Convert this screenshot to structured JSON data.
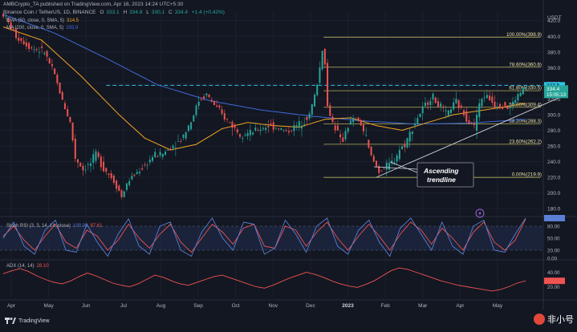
{
  "header": {
    "publisher": "AMBCrypto_TA published on TradingView.com, Apr 16, 2023 14:24 UTC+5:30",
    "symbol": "Binance Coin / TetherUS, 1D, BINANCE",
    "ohlc": [
      "O",
      "333.1",
      "H",
      "334.8",
      "L",
      "330.1",
      "C",
      "334.4",
      "+1.4 (+0.42%)"
    ],
    "ema_label": "EMA (50, close, 0, SMA, 5)",
    "ema_value": "314.5",
    "ma_label": "MA (200, close, 0, SMA, 5)",
    "ma_value": "293.9"
  },
  "colors": {
    "background": "#131722",
    "up": "#26a69a",
    "down": "#ef5350",
    "ema": "#f5a623",
    "ma": "#3f6ad8",
    "fib": "#b8b05a",
    "dashed_level": "#2dc4e8",
    "trendline": "#d1d4dc",
    "rsi_k": "#5b7ed6",
    "rsi_d": "#ef5350",
    "adx": "#ef5350"
  },
  "footer": {
    "brand": "TradingView",
    "logo_icon": "tradingview-logo-icon"
  },
  "watermark": {
    "text": "非小号",
    "icon": "feixiaohao-logo-icon"
  },
  "annotation": {
    "line1": "Ascending",
    "line2": "trendline"
  },
  "chart_data": [
    {
      "type": "candlestick",
      "title": "Binance Coin / TetherUS, 1D, BINANCE",
      "ylabel": "USDT",
      "y_ticks": [
        180,
        200,
        220,
        240,
        260,
        280,
        300,
        320,
        340,
        360,
        380,
        400,
        420
      ],
      "ylim": [
        172,
        432
      ],
      "x_labels": [
        "Apr",
        "May",
        "Jun",
        "Jul",
        "Aug",
        "Sep",
        "Oct",
        "Nov",
        "Dec",
        "2023",
        "Feb",
        "Mar",
        "Apr",
        "May"
      ],
      "price_path": [
        [
          0,
          428
        ],
        [
          10,
          400
        ],
        [
          22,
          385
        ],
        [
          32,
          380
        ],
        [
          40,
          350
        ],
        [
          46,
          318
        ],
        [
          52,
          290
        ],
        [
          56,
          245
        ],
        [
          62,
          230
        ],
        [
          68,
          238
        ],
        [
          72,
          250
        ],
        [
          78,
          232
        ],
        [
          84,
          220
        ],
        [
          88,
          210
        ],
        [
          92,
          195
        ],
        [
          97,
          215
        ],
        [
          103,
          225
        ],
        [
          110,
          235
        ],
        [
          117,
          248
        ],
        [
          124,
          250
        ],
        [
          130,
          258
        ],
        [
          138,
          268
        ],
        [
          146,
          292
        ],
        [
          152,
          318
        ],
        [
          158,
          326
        ],
        [
          165,
          310
        ],
        [
          172,
          296
        ],
        [
          178,
          286
        ],
        [
          184,
          276
        ],
        [
          192,
          276
        ],
        [
          198,
          281
        ],
        [
          206,
          286
        ],
        [
          214,
          283
        ],
        [
          220,
          278
        ],
        [
          226,
          284
        ],
        [
          232,
          290
        ],
        [
          238,
          300
        ],
        [
          243,
          330
        ],
        [
          246,
          360
        ],
        [
          249,
          395
        ],
        [
          252,
          310
        ],
        [
          256,
          290
        ],
        [
          260,
          277
        ],
        [
          263,
          262
        ],
        [
          266,
          280
        ],
        [
          270,
          290
        ],
        [
          274,
          295
        ],
        [
          278,
          288
        ],
        [
          282,
          270
        ],
        [
          285,
          250
        ],
        [
          288,
          240
        ],
        [
          292,
          228
        ],
        [
          296,
          232
        ],
        [
          300,
          236
        ],
        [
          304,
          242
        ],
        [
          308,
          256
        ],
        [
          312,
          262
        ],
        [
          316,
          276
        ],
        [
          320,
          290
        ],
        [
          324,
          302
        ],
        [
          328,
          312
        ],
        [
          331,
          318
        ],
        [
          333,
          326
        ],
        [
          336,
          316
        ],
        [
          340,
          310
        ],
        [
          344,
          300
        ],
        [
          348,
          308
        ],
        [
          352,
          316
        ],
        [
          356,
          306
        ],
        [
          360,
          296
        ],
        [
          364,
          290
        ],
        [
          366,
          284
        ],
        [
          368,
          300
        ],
        [
          371,
          318
        ],
        [
          374,
          325
        ],
        [
          378,
          320
        ],
        [
          382,
          313
        ],
        [
          386,
          312
        ],
        [
          390,
          313
        ],
        [
          392,
          308
        ],
        [
          395,
          312
        ],
        [
          398,
          320
        ],
        [
          400,
          324
        ],
        [
          402,
          328
        ],
        [
          404,
          332
        ],
        [
          406,
          334.4
        ]
      ],
      "last_price": "334.4",
      "countdown": "15:05:13",
      "level_label": "337.5",
      "dashed_level": 337.5,
      "fib_levels": [
        {
          "label": "100.00%(398.9)",
          "value": 398.9
        },
        {
          "label": "78.60%(360.6)",
          "value": 360.6
        },
        {
          "label": "61.80%(330.5)",
          "value": 330.5
        },
        {
          "label": "50.00%(309.4)",
          "value": 309.4
        },
        {
          "label": "38.20%(288.3)",
          "value": 288.3
        },
        {
          "label": "23.60%(262.2)",
          "value": 262.2
        },
        {
          "label": "0.00%(219.9)",
          "value": 219.9
        }
      ],
      "ema": [
        [
          0,
          412
        ],
        [
          30,
          395
        ],
        [
          60,
          350
        ],
        [
          90,
          300
        ],
        [
          110,
          270
        ],
        [
          130,
          255
        ],
        [
          150,
          262
        ],
        [
          170,
          282
        ],
        [
          190,
          290
        ],
        [
          210,
          286
        ],
        [
          230,
          284
        ],
        [
          250,
          294
        ],
        [
          270,
          296
        ],
        [
          290,
          286
        ],
        [
          310,
          280
        ],
        [
          330,
          290
        ],
        [
          350,
          300
        ],
        [
          370,
          305
        ],
        [
          390,
          310
        ],
        [
          406,
          314.5
        ]
      ],
      "ma": [
        [
          0,
          428
        ],
        [
          40,
          404
        ],
        [
          80,
          372
        ],
        [
          120,
          338
        ],
        [
          160,
          318
        ],
        [
          200,
          306
        ],
        [
          240,
          298
        ],
        [
          280,
          292
        ],
        [
          320,
          288
        ],
        [
          360,
          289
        ],
        [
          406,
          293.9
        ]
      ],
      "trendline": [
        [
          290,
          220
        ],
        [
          406,
          313
        ]
      ]
    },
    {
      "type": "line",
      "title": "Stoch RSI (3, 3, 14, 14, close)",
      "series_values": [
        "100.00",
        "97.61"
      ],
      "y_ticks": [
        0,
        20,
        50,
        80,
        100
      ],
      "ylim": [
        0,
        100
      ],
      "k": [
        50,
        90,
        30,
        10,
        70,
        95,
        20,
        15,
        85,
        40,
        5,
        60,
        98,
        30,
        10,
        80,
        90,
        20,
        5,
        65,
        100,
        50,
        20,
        90,
        85,
        10,
        25,
        95,
        60,
        15,
        80,
        100,
        30,
        10,
        70,
        95,
        40,
        5,
        75,
        100,
        60,
        20,
        90,
        30,
        10,
        80,
        95,
        20,
        15,
        60,
        100
      ],
      "d": [
        55,
        80,
        45,
        20,
        55,
        85,
        40,
        25,
        70,
        55,
        20,
        45,
        85,
        50,
        25,
        60,
        85,
        40,
        15,
        50,
        85,
        65,
        35,
        75,
        85,
        30,
        25,
        80,
        70,
        30,
        65,
        90,
        50,
        20,
        55,
        85,
        55,
        20,
        60,
        90,
        70,
        35,
        75,
        50,
        20,
        65,
        90,
        40,
        20,
        45,
        97.61
      ]
    },
    {
      "type": "line",
      "title": "ADX (14, 14)",
      "series_values": [
        "28.10"
      ],
      "y_ticks": [
        20,
        40
      ],
      "ylim": [
        5,
        55
      ],
      "adx": [
        38,
        42,
        45,
        41,
        35,
        30,
        26,
        24,
        28,
        34,
        39,
        35,
        30,
        25,
        22,
        20,
        24,
        30,
        36,
        33,
        28,
        24,
        22,
        26,
        30,
        34,
        36,
        32,
        28,
        24,
        20,
        18,
        22,
        27,
        32,
        36,
        40,
        37,
        33,
        28,
        24,
        21,
        19,
        23,
        28,
        35,
        42,
        46,
        44,
        40,
        36,
        32,
        28,
        25,
        22,
        20,
        18,
        16,
        14,
        16,
        20,
        25,
        28.1
      ]
    }
  ]
}
